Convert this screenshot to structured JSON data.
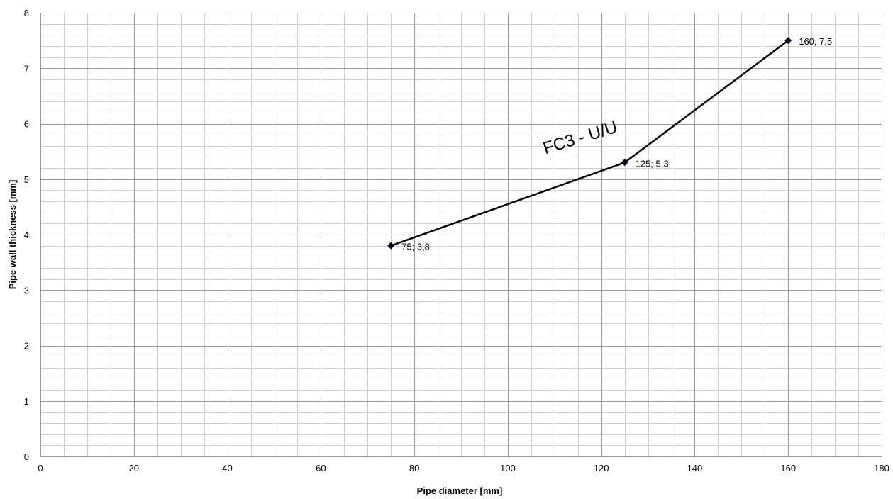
{
  "chart_data": {
    "type": "line",
    "title": "",
    "xlabel": "Pipe diameter  [mm]",
    "ylabel": "Pipe wall thickness [mm]",
    "xlim": [
      0,
      180
    ],
    "ylim": [
      0,
      8
    ],
    "x_major_step": 20,
    "x_minor_step": 5,
    "y_major_step": 1,
    "y_minor_step": 0.2,
    "grid": true,
    "line_color": "#000000",
    "grid_color": "#bfbfbf",
    "x_tick_labels": [
      "0",
      "20",
      "40",
      "60",
      "80",
      "100",
      "120",
      "140",
      "160",
      "180"
    ],
    "y_tick_labels": [
      "0",
      "1",
      "2",
      "3",
      "4",
      "5",
      "6",
      "7",
      "8"
    ],
    "series": [
      {
        "marker": "diamond",
        "points": [
          {
            "x": 75,
            "y": 3.8,
            "label": "75; 3,8"
          },
          {
            "x": 125,
            "y": 5.3,
            "label": "125; 5,3"
          },
          {
            "x": 160,
            "y": 7.5,
            "label": "160; 7,5"
          }
        ]
      }
    ],
    "annotations": [
      {
        "text": "FC3 - U/U",
        "x": 108,
        "y": 5.45,
        "rotation_deg": -17
      }
    ]
  }
}
